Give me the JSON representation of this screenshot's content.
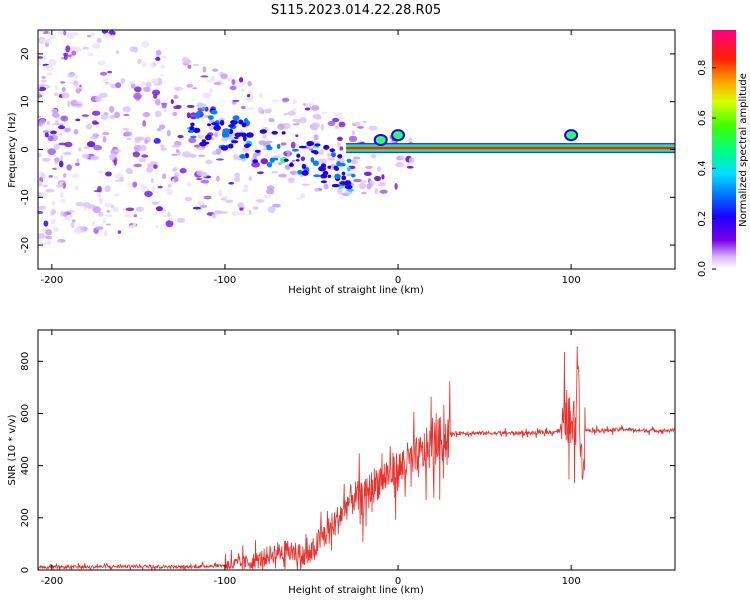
{
  "title": "S115.2023.014.22.28.R05",
  "colors": {
    "snr_line": "#e8302c",
    "spectrogram_peak": "#e8302c",
    "frame": "#000000"
  },
  "chart_data": [
    {
      "type": "heatmap",
      "name": "spectrogram",
      "title": "",
      "xlabel": "Height of straight line (km)",
      "ylabel": "Frequency (Hz)",
      "xlim": [
        -208,
        160
      ],
      "ylim": [
        -25,
        25
      ],
      "xticks": [
        -200,
        -100,
        0,
        100
      ],
      "yticks": [
        -20,
        -10,
        0,
        10,
        20
      ],
      "colorbar": {
        "label": "Normalized spectral amplitude",
        "range": [
          0,
          0.95
        ],
        "ticks": [
          "0.0",
          "0.2",
          "0.4",
          "0.6",
          "0.8"
        ],
        "colormap": "rainbow (white, purple, blue, cyan, green, yellow, red, magenta)"
      },
      "ridge": {
        "frequency_hz": 0.3,
        "x_range": [
          -30,
          160
        ],
        "noise_x_range": [
          -208,
          -30
        ]
      },
      "grid": false
    },
    {
      "type": "line",
      "name": "snr",
      "title": "",
      "xlabel": "Height of straight line (km)",
      "ylabel": "SNR (10 * v/v)",
      "xlim": [
        -208,
        160
      ],
      "ylim": [
        0,
        920
      ],
      "xticks": [
        -200,
        -100,
        0,
        100
      ],
      "yticks": [
        0,
        200,
        400,
        600,
        800
      ],
      "x": [
        -208,
        -180,
        -150,
        -120,
        -100,
        -90,
        -80,
        -70,
        -60,
        -55,
        -50,
        -45,
        -40,
        -35,
        -30,
        -25,
        -20,
        -15,
        -10,
        -5,
        0,
        5,
        10,
        15,
        20,
        25,
        30,
        35,
        40,
        50,
        60,
        70,
        80,
        90,
        95,
        98,
        100,
        102,
        104,
        106,
        108,
        110,
        120,
        130,
        140,
        150,
        160
      ],
      "y": [
        10,
        12,
        14,
        12,
        18,
        25,
        40,
        70,
        70,
        50,
        60,
        120,
        150,
        190,
        250,
        280,
        270,
        320,
        350,
        370,
        380,
        410,
        420,
        450,
        480,
        500,
        520,
        525,
        525,
        525,
        525,
        525,
        525,
        530,
        540,
        600,
        520,
        560,
        820,
        400,
        540,
        535,
        535,
        540,
        535,
        535,
        535
      ],
      "grid": false
    }
  ]
}
